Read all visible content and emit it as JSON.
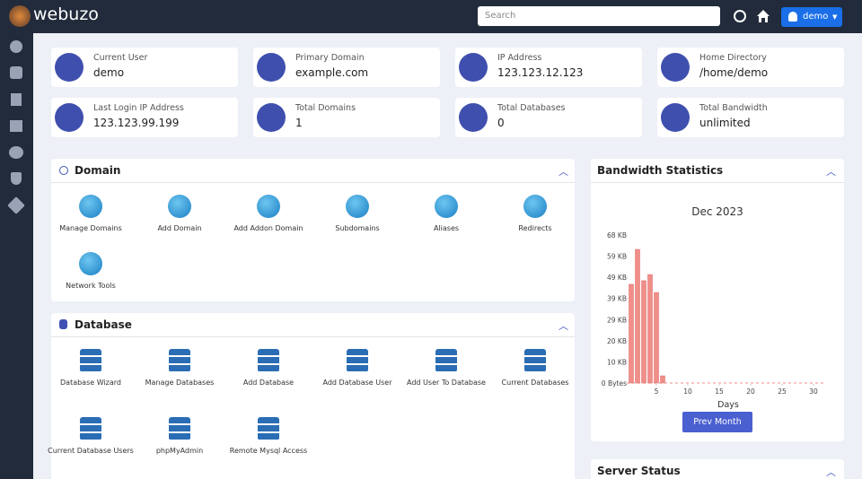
{
  "header": {
    "logo": "webuzo",
    "search_placeholder": "Search",
    "user": "demo"
  },
  "cards": [
    {
      "label": "Current User",
      "value": "demo"
    },
    {
      "label": "Primary Domain",
      "value": "example.com"
    },
    {
      "label": "IP Address",
      "value": "123.123.12.123"
    },
    {
      "label": "Home Directory",
      "value": "/home/demo"
    },
    {
      "label": "Last Login IP Address",
      "value": "123.123.99.199"
    },
    {
      "label": "Total Domains",
      "value": "1"
    },
    {
      "label": "Total Databases",
      "value": "0"
    },
    {
      "label": "Total Bandwidth",
      "value": "unlimited"
    }
  ],
  "domain": {
    "title": "Domain",
    "items": [
      "Manage Domains",
      "Add Domain",
      "Add Addon Domain",
      "Subdomains",
      "Aliases",
      "Redirects",
      "Network Tools"
    ]
  },
  "database": {
    "title": "Database",
    "items": [
      "Database Wizard",
      "Manage Databases",
      "Add Database",
      "Add Database User",
      "Add User To Database",
      "Current Databases",
      "Current Database Users",
      "phpMyAdmin",
      "Remote Mysql Access"
    ]
  },
  "bandwidth": {
    "title": "Bandwidth Statistics",
    "button": "Prev Month",
    "chart": {
      "type": "bar",
      "title": "Dec 2023",
      "x_label": "Days",
      "color": "#f08f8a",
      "x": [
        1,
        2,
        3,
        4,
        5,
        6,
        7,
        8,
        9,
        10,
        11,
        12,
        13,
        14,
        15,
        16,
        17,
        18,
        19,
        20,
        21,
        22,
        23,
        24,
        25,
        26,
        27,
        28,
        29,
        30,
        31
      ],
      "values": [
        46700,
        63200,
        48400,
        51300,
        42800,
        3400,
        0,
        0,
        0,
        0,
        0,
        0,
        0,
        0,
        0,
        0,
        0,
        0,
        0,
        0,
        0,
        0,
        0,
        0,
        0,
        0,
        0,
        0,
        0,
        0,
        0
      ],
      "xlim": [
        0,
        32
      ],
      "xticks": [
        5,
        10,
        15,
        20,
        25,
        30
      ],
      "ylim": [
        0,
        70000
      ],
      "yticks": [
        {
          "value": 0,
          "label": "0 Bytes"
        },
        {
          "value": 10000,
          "label": "10 KB"
        },
        {
          "value": 20000,
          "label": "20 KB"
        },
        {
          "value": 30000,
          "label": "29 KB"
        },
        {
          "value": 40000,
          "label": "39 KB"
        },
        {
          "value": 50000,
          "label": "49 KB"
        },
        {
          "value": 60000,
          "label": "59 KB"
        },
        {
          "value": 70000,
          "label": "68 KB"
        }
      ]
    }
  },
  "server_status": {
    "title": "Server Status"
  }
}
